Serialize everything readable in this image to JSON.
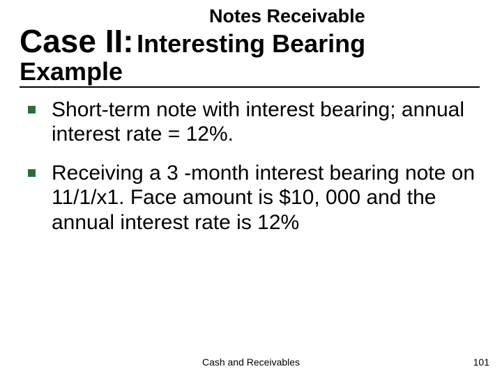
{
  "header": {
    "notes_receivable": "Notes Receivable"
  },
  "title": {
    "case_label": "Case II:",
    "subtitle": "Interesting Bearing",
    "example": "Example",
    "case_fontsize": 46,
    "subtitle_fontsize": 36,
    "example_fontsize": 36,
    "underline_color": "#000000"
  },
  "bullets": {
    "marker_color": "#2f6b3a",
    "marker_size": 11,
    "text_fontsize": 30,
    "items": [
      "Short-term note with interest bearing; annual interest rate = 12%.",
      "Receiving a 3 -month interest bearing note on 11/1/x1. Face amount is $10, 000 and the annual interest rate is 12%"
    ]
  },
  "footer": {
    "center_text": "Cash and Receivables",
    "page_number": "101",
    "fontsize": 14
  },
  "colors": {
    "background": "#ffffff",
    "text": "#000000"
  }
}
